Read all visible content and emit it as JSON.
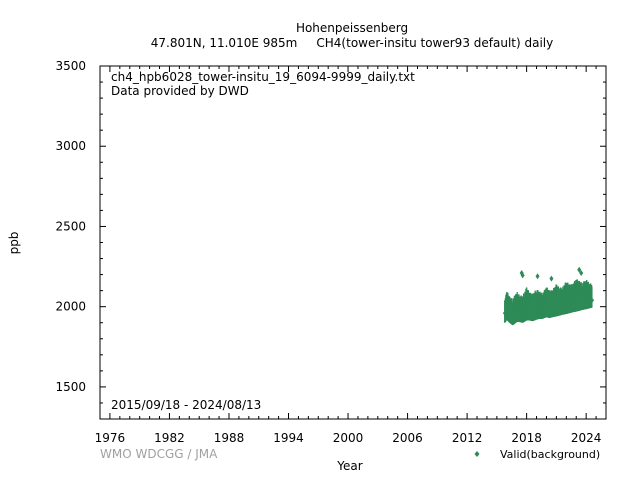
{
  "chart_data": {
    "type": "scatter",
    "title": "Hohenpeissenberg",
    "subtitle": "47.801N, 11.010E 985m     CH4(tower-insitu tower93 default) daily",
    "xlabel": "Year",
    "ylabel": "ppb",
    "xlim": [
      1975,
      2026
    ],
    "ylim": [
      1300,
      3500
    ],
    "x_ticks": [
      "1976",
      "1982",
      "1988",
      "1994",
      "2000",
      "2006",
      "2012",
      "2018",
      "2024"
    ],
    "y_ticks": [
      "1500",
      "2000",
      "2500",
      "3000",
      "3500"
    ],
    "annotations": [
      "ch4_hpb6028_tower-insitu_19_6094-9999_daily.txt",
      "Data provided by DWD",
      "2015/09/18 - 2024/08/13"
    ],
    "watermark": "WMO WDCGG / JMA",
    "legend_position": "bottom-right",
    "grid": false,
    "series": [
      {
        "name": "Valid(background)",
        "color": "#2e8b57",
        "marker": "diamond",
        "x": [
          2015.8,
          2016.0,
          2016.3,
          2016.6,
          2017.0,
          2017.3,
          2017.6,
          2018.0,
          2018.3,
          2018.6,
          2019.0,
          2019.3,
          2019.6,
          2020.0,
          2020.3,
          2020.6,
          2021.0,
          2021.3,
          2021.6,
          2022.0,
          2022.3,
          2022.6,
          2023.0,
          2023.3,
          2023.6,
          2024.0,
          2024.3,
          2024.6
        ],
        "y": [
          1960,
          2000,
          1950,
          1930,
          1990,
          1960,
          1950,
          2010,
          1970,
          1960,
          2000,
          1975,
          1970,
          2015,
          1985,
          1985,
          2030,
          2000,
          1995,
          2040,
          2010,
          2020,
          2060,
          2020,
          2030,
          2070,
          2040,
          2040
        ],
        "y_low": [
          1900,
          1920,
          1900,
          1885,
          1905,
          1905,
          1900,
          1915,
          1915,
          1910,
          1920,
          1925,
          1925,
          1935,
          1930,
          1935,
          1940,
          1945,
          1950,
          1955,
          1960,
          1965,
          1970,
          1975,
          1980,
          1985,
          1990,
          1995
        ],
        "y_high": [
          2040,
          2100,
          2060,
          2050,
          2095,
          2070,
          2070,
          2120,
          2090,
          2080,
          2110,
          2095,
          2085,
          2125,
          2100,
          2105,
          2140,
          2120,
          2120,
          2160,
          2140,
          2140,
          2175,
          2160,
          2150,
          2170,
          2150,
          2140
        ],
        "outliers": [
          [
            2017.5,
            2210
          ],
          [
            2017.6,
            2195
          ],
          [
            2019.1,
            2190
          ],
          [
            2020.5,
            2175
          ],
          [
            2023.3,
            2230
          ],
          [
            2023.5,
            2210
          ]
        ]
      }
    ]
  }
}
